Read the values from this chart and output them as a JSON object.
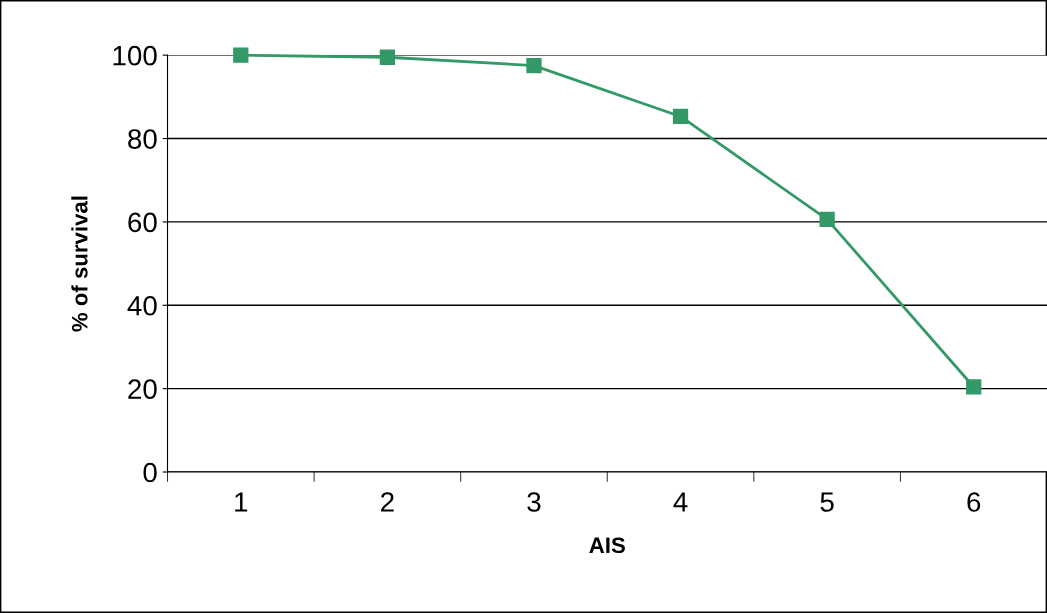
{
  "chart_data": {
    "type": "line",
    "xlabel": "AIS",
    "ylabel": "% of survival",
    "categories": [
      "1",
      "2",
      "3",
      "4",
      "5",
      "6"
    ],
    "series": [
      {
        "color": "#339966",
        "values": [
          100,
          99.5,
          97.5,
          85.3,
          60.6,
          20.4
        ]
      }
    ],
    "ylim": [
      0,
      100
    ],
    "yticks": [
      0,
      20,
      40,
      60,
      80,
      100
    ],
    "grid": "y",
    "marker": "square",
    "line_style": "solid",
    "legend": false
  }
}
